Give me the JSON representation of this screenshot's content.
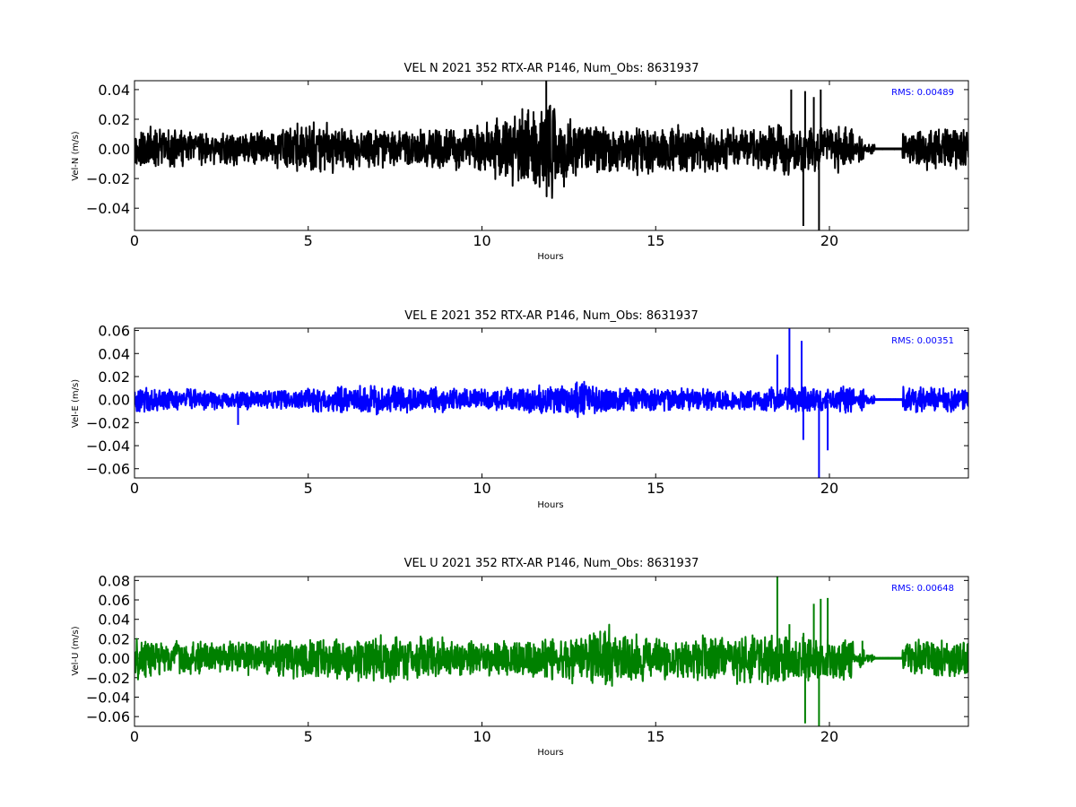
{
  "chart_data": [
    {
      "type": "line",
      "title": "VEL N 2021 352 RTX-AR  P146, Num_Obs: 8631937",
      "xlabel": "Hours",
      "ylabel": "Vel-N (m/s)",
      "xlim": [
        0,
        24
      ],
      "ylim": [
        -0.055,
        0.046
      ],
      "xticks": [
        0,
        5,
        10,
        15,
        20
      ],
      "xtick_labels": [
        "0",
        "5",
        "10",
        "15",
        "20"
      ],
      "yticks": [
        -0.04,
        -0.02,
        0.0,
        0.02,
        0.04
      ],
      "ytick_labels": [
        "−0.04",
        "−0.02",
        "0.00",
        "0.02",
        "0.04"
      ],
      "annotation": "RMS:  0.00489",
      "annotation_color": "#0000ff",
      "color": "#000000",
      "grid": false,
      "legend": "none",
      "amplitude_profile": {
        "hours": [
          0,
          1,
          2,
          3,
          4,
          5,
          6,
          7,
          8,
          9,
          10,
          11,
          11.9,
          12.5,
          13,
          14,
          15,
          16,
          17,
          18,
          18.8,
          19.5,
          20.7
        ],
        "envelope": [
          0.017,
          0.014,
          0.012,
          0.012,
          0.015,
          0.019,
          0.017,
          0.016,
          0.016,
          0.015,
          0.019,
          0.027,
          0.038,
          0.025,
          0.018,
          0.018,
          0.019,
          0.017,
          0.016,
          0.016,
          0.019,
          0.017,
          0.017
        ]
      },
      "spikes": [
        {
          "hours": 11.85,
          "value": 0.046
        },
        {
          "hours": 18.9,
          "value": 0.04
        },
        {
          "hours": 19.25,
          "value": -0.052
        },
        {
          "hours": 19.3,
          "value": 0.039
        },
        {
          "hours": 19.55,
          "value": 0.035
        },
        {
          "hours": 19.7,
          "value": -0.057
        },
        {
          "hours": 19.75,
          "value": 0.04
        }
      ],
      "flat_interval": [
        21.3,
        22.1
      ]
    },
    {
      "type": "line",
      "title": "VEL E 2021 352 RTX-AR  P146, Num_Obs: 8631937",
      "xlabel": "Hours",
      "ylabel": "Vel-E (m/s)",
      "xlim": [
        0,
        24
      ],
      "ylim": [
        -0.068,
        0.062
      ],
      "xticks": [
        0,
        5,
        10,
        15,
        20
      ],
      "xtick_labels": [
        "0",
        "5",
        "10",
        "15",
        "20"
      ],
      "yticks": [
        -0.06,
        -0.04,
        -0.02,
        0.0,
        0.02,
        0.04,
        0.06
      ],
      "ytick_labels": [
        "−0.06",
        "−0.04",
        "−0.02",
        "0.00",
        "0.02",
        "0.04",
        "0.06"
      ],
      "annotation": "RMS:  0.00351",
      "annotation_color": "#0000ff",
      "color": "#0000ff",
      "grid": false,
      "legend": "none",
      "amplitude_profile": {
        "hours": [
          0,
          1,
          2,
          3,
          4,
          5,
          6,
          7,
          8,
          9,
          10,
          11,
          12,
          13,
          14,
          15,
          16,
          17,
          18,
          19,
          20.7
        ],
        "envelope": [
          0.013,
          0.011,
          0.009,
          0.009,
          0.01,
          0.011,
          0.013,
          0.014,
          0.012,
          0.012,
          0.01,
          0.012,
          0.014,
          0.017,
          0.013,
          0.011,
          0.01,
          0.01,
          0.011,
          0.012,
          0.012
        ]
      },
      "spikes": [
        {
          "hours": 2.98,
          "value": -0.022
        },
        {
          "hours": 18.5,
          "value": 0.039
        },
        {
          "hours": 18.85,
          "value": 0.062
        },
        {
          "hours": 19.2,
          "value": 0.051
        },
        {
          "hours": 19.25,
          "value": -0.035
        },
        {
          "hours": 19.7,
          "value": -0.068
        },
        {
          "hours": 19.95,
          "value": -0.044
        }
      ],
      "flat_interval": [
        21.3,
        22.1
      ]
    },
    {
      "type": "line",
      "title": "VEL U 2021 352 RTX-AR  P146, Num_Obs: 8631937",
      "xlabel": "Hours",
      "ylabel": "Vel-U (m/s)",
      "xlim": [
        0,
        24
      ],
      "ylim": [
        -0.07,
        0.084
      ],
      "xticks": [
        0,
        5,
        10,
        15,
        20
      ],
      "xtick_labels": [
        "0",
        "5",
        "10",
        "15",
        "20"
      ],
      "yticks": [
        -0.06,
        -0.04,
        -0.02,
        0.0,
        0.02,
        0.04,
        0.06,
        0.08
      ],
      "ytick_labels": [
        "−0.06",
        "−0.04",
        "−0.02",
        "0.00",
        "0.02",
        "0.04",
        "0.06",
        "0.08"
      ],
      "annotation": "RMS:  0.00648",
      "annotation_color": "#0000ff",
      "color": "#008000",
      "grid": false,
      "legend": "none",
      "amplitude_profile": {
        "hours": [
          0,
          1,
          2,
          3,
          4,
          5,
          6,
          7,
          8,
          9,
          10,
          11,
          12,
          13,
          13.7,
          14.5,
          15,
          16,
          17,
          18,
          19,
          20.7
        ],
        "envelope": [
          0.023,
          0.019,
          0.019,
          0.019,
          0.021,
          0.023,
          0.023,
          0.027,
          0.025,
          0.022,
          0.019,
          0.021,
          0.025,
          0.033,
          0.036,
          0.025,
          0.023,
          0.026,
          0.027,
          0.028,
          0.028,
          0.025
        ]
      },
      "spikes": [
        {
          "hours": 18.5,
          "value": 0.084
        },
        {
          "hours": 18.85,
          "value": 0.035
        },
        {
          "hours": 19.3,
          "value": -0.067
        },
        {
          "hours": 19.55,
          "value": 0.056
        },
        {
          "hours": 19.75,
          "value": 0.061
        },
        {
          "hours": 19.7,
          "value": -0.07
        },
        {
          "hours": 19.95,
          "value": 0.062
        },
        {
          "hours": 20.95,
          "value": 0.018
        }
      ],
      "flat_interval": [
        21.3,
        22.1
      ]
    }
  ]
}
